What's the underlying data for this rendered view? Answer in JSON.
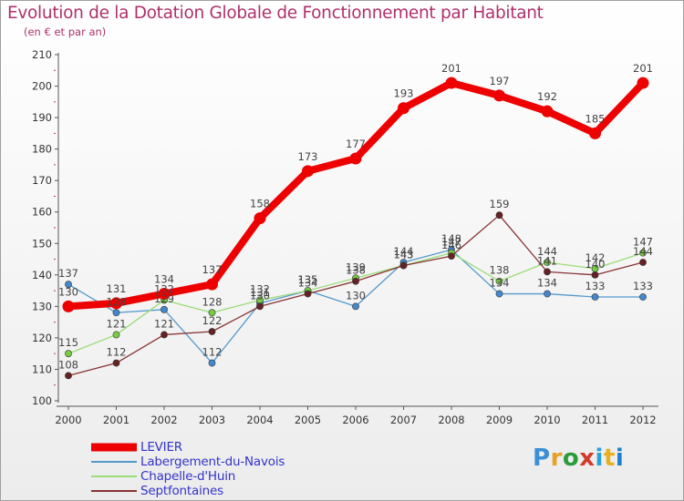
{
  "title": "Evolution de la Dotation Globale de Fonctionnement par Habitant",
  "subtitle": "(en € et par an)",
  "brand": {
    "text": "Proxiti",
    "colors": [
      "#3a8fd6",
      "#e8a020",
      "#2a9c3a",
      "#d23a2a",
      "#2aa0d8",
      "#e8b020",
      "#1e7fd0"
    ]
  },
  "chart_data": {
    "type": "line",
    "title": "Evolution de la Dotation Globale de Fonctionnement par Habitant",
    "ylabel": "(en € et par an)",
    "xlabel": "",
    "x": [
      "2000",
      "2001",
      "2002",
      "2003",
      "2004",
      "2005",
      "2006",
      "2007",
      "2008",
      "2009",
      "2010",
      "2011",
      "2012"
    ],
    "yticks": [
      100,
      110,
      120,
      130,
      140,
      150,
      160,
      170,
      180,
      190,
      200,
      210
    ],
    "ylim": [
      100,
      210
    ],
    "grid": false,
    "legend": "bottom-left",
    "series": [
      {
        "name": "LEVIER",
        "color": "#ee0000",
        "markerColor": "#ee0000",
        "emphasis": true,
        "values": [
          130,
          131,
          134,
          137,
          158,
          173,
          177,
          193,
          201,
          197,
          192,
          185,
          201
        ],
        "labels": [
          "130",
          "131",
          "134",
          "137",
          "158",
          "173",
          "177",
          "193",
          "201",
          "197",
          "192",
          "185",
          "201"
        ]
      },
      {
        "name": "Labergement-du-Navois",
        "color": "#5599cc",
        "markerColor": "#4488cc",
        "emphasis": false,
        "values": [
          137,
          128,
          129,
          112,
          131,
          135,
          130,
          144,
          148,
          134,
          134,
          133,
          133
        ],
        "labels": [
          "137",
          "128",
          "129",
          "112",
          "131",
          "135",
          "130",
          "144",
          "148",
          "134",
          "134",
          "133",
          "133"
        ]
      },
      {
        "name": "Chapelle-d'Huin",
        "color": "#99dd77",
        "markerColor": "#77cc44",
        "emphasis": false,
        "values": [
          115,
          121,
          132,
          128,
          132,
          135,
          139,
          143,
          147,
          138,
          144,
          142,
          147
        ],
        "labels": [
          "115",
          "121",
          "132",
          "128",
          "132",
          "135",
          "139",
          "143",
          "147",
          "138",
          "144",
          "142",
          "147"
        ]
      },
      {
        "name": "Septfontaines",
        "color": "#883333",
        "markerColor": "#662222",
        "emphasis": false,
        "values": [
          108,
          112,
          121,
          122,
          130,
          134,
          138,
          143,
          146,
          159,
          141,
          140,
          144
        ],
        "labels": [
          "108",
          "112",
          "121",
          "122",
          "130",
          "134",
          "138",
          "143",
          "146",
          "159",
          "141",
          "140",
          "144"
        ]
      }
    ]
  }
}
